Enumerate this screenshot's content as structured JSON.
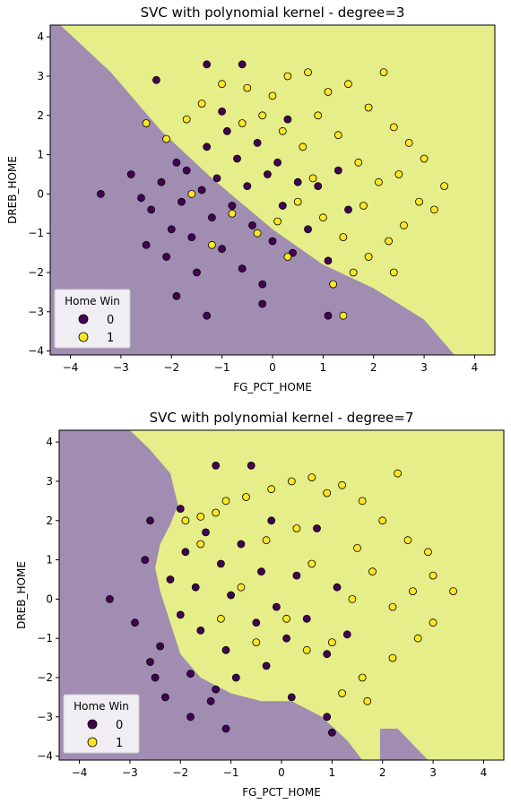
{
  "colors": {
    "class0": "#440154",
    "class1": "#fde725",
    "region0": "#a08db1",
    "region1": "#e6ee8a",
    "edge": "#000000"
  },
  "chart_data": [
    {
      "type": "scatter",
      "title": "SVC with polynomial kernel - degree=3",
      "xlabel": "FG_PCT_HOME",
      "ylabel": "DREB_HOME",
      "xlim": [
        -4.4,
        4.4
      ],
      "ylim": [
        -4.1,
        4.3
      ],
      "xticks": [
        -4,
        -3,
        -2,
        -1,
        0,
        1,
        2,
        3,
        4
      ],
      "yticks": [
        -4,
        -3,
        -2,
        -1,
        0,
        1,
        2,
        3,
        4
      ],
      "legend": {
        "title": "Home Win",
        "location": "lower-left",
        "entries": [
          "0",
          "1"
        ]
      },
      "decision_boundary": [
        [
          -4.2,
          4.3
        ],
        [
          -3.2,
          3.1
        ],
        [
          -2.2,
          1.6
        ],
        [
          -1.2,
          0.4
        ],
        [
          0.0,
          -0.9
        ],
        [
          1.0,
          -1.8
        ],
        [
          2.0,
          -2.4
        ],
        [
          3.0,
          -3.2
        ],
        [
          3.6,
          -4.1
        ]
      ],
      "series": [
        {
          "name": "0",
          "points": [
            [
              -2.8,
              0.5
            ],
            [
              -2.6,
              -0.1
            ],
            [
              -2.4,
              -0.4
            ],
            [
              -2.2,
              0.3
            ],
            [
              -2.0,
              -0.9
            ],
            [
              -2.1,
              -1.6
            ],
            [
              -1.9,
              0.8
            ],
            [
              -1.8,
              -0.2
            ],
            [
              -1.7,
              0.6
            ],
            [
              -1.6,
              -1.1
            ],
            [
              -1.5,
              -2.0
            ],
            [
              -1.4,
              0.1
            ],
            [
              -1.3,
              1.2
            ],
            [
              -1.3,
              3.3
            ],
            [
              -1.2,
              -0.6
            ],
            [
              -1.1,
              0.4
            ],
            [
              -1.0,
              -1.4
            ],
            [
              -0.9,
              1.6
            ],
            [
              -0.8,
              -0.3
            ],
            [
              -0.7,
              0.9
            ],
            [
              -0.6,
              3.3
            ],
            [
              -0.6,
              -1.9
            ],
            [
              -0.5,
              0.2
            ],
            [
              -0.4,
              -0.8
            ],
            [
              -0.3,
              1.3
            ],
            [
              -0.2,
              -2.3
            ],
            [
              -0.1,
              0.5
            ],
            [
              0.0,
              -1.2
            ],
            [
              0.1,
              0.8
            ],
            [
              0.2,
              -0.3
            ],
            [
              0.3,
              1.9
            ],
            [
              0.4,
              -1.5
            ],
            [
              0.5,
              0.3
            ],
            [
              0.7,
              -0.9
            ],
            [
              0.9,
              0.2
            ],
            [
              1.1,
              -1.7
            ],
            [
              1.3,
              0.6
            ],
            [
              1.5,
              -0.4
            ],
            [
              -2.3,
              2.9
            ],
            [
              -3.4,
              0.0
            ],
            [
              -1.9,
              -2.6
            ],
            [
              -1.3,
              -3.1
            ],
            [
              -0.2,
              -2.8
            ],
            [
              1.1,
              -3.1
            ],
            [
              -2.5,
              -1.3
            ],
            [
              -1.0,
              2.1
            ]
          ]
        },
        {
          "name": "1",
          "points": [
            [
              -2.5,
              1.8
            ],
            [
              -1.7,
              1.9
            ],
            [
              -1.4,
              2.3
            ],
            [
              -1.0,
              2.8
            ],
            [
              -0.5,
              2.7
            ],
            [
              0.0,
              2.5
            ],
            [
              0.3,
              3.0
            ],
            [
              0.7,
              3.1
            ],
            [
              1.1,
              2.6
            ],
            [
              1.5,
              2.8
            ],
            [
              2.2,
              3.1
            ],
            [
              1.9,
              2.2
            ],
            [
              2.4,
              1.7
            ],
            [
              2.7,
              1.3
            ],
            [
              3.0,
              0.9
            ],
            [
              3.4,
              0.2
            ],
            [
              2.9,
              -0.2
            ],
            [
              2.6,
              -0.8
            ],
            [
              2.3,
              -1.2
            ],
            [
              1.9,
              -1.6
            ],
            [
              2.4,
              -2.0
            ],
            [
              1.6,
              -2.0
            ],
            [
              1.2,
              -2.3
            ],
            [
              1.4,
              -1.1
            ],
            [
              1.0,
              -0.6
            ],
            [
              0.8,
              0.4
            ],
            [
              0.6,
              1.2
            ],
            [
              0.2,
              1.6
            ],
            [
              -0.2,
              2.0
            ],
            [
              -0.6,
              1.8
            ],
            [
              1.7,
              0.8
            ],
            [
              2.1,
              0.3
            ],
            [
              1.3,
              1.5
            ],
            [
              0.9,
              2.0
            ],
            [
              0.5,
              -0.2
            ],
            [
              0.1,
              -0.7
            ],
            [
              -0.3,
              -1.0
            ],
            [
              -0.8,
              -0.5
            ],
            [
              -1.2,
              -1.3
            ],
            [
              -1.6,
              0.0
            ],
            [
              -2.1,
              1.4
            ],
            [
              1.8,
              -0.3
            ],
            [
              2.5,
              0.5
            ],
            [
              3.2,
              -0.4
            ],
            [
              1.4,
              -3.1
            ],
            [
              0.3,
              -1.6
            ]
          ]
        }
      ]
    },
    {
      "type": "scatter",
      "title": "SVC with polynomial kernel - degree=7",
      "xlabel": "FG_PCT_HOME",
      "ylabel": "DREB_HOME",
      "xlim": [
        -4.4,
        4.4
      ],
      "ylim": [
        -4.1,
        4.3
      ],
      "xticks": [
        -4,
        -3,
        -2,
        -1,
        0,
        1,
        2,
        3,
        4
      ],
      "yticks": [
        -4,
        -3,
        -2,
        -1,
        0,
        1,
        2,
        3,
        4
      ],
      "legend": {
        "title": "Home Win",
        "location": "lower-left",
        "entries": [
          "0",
          "1"
        ]
      },
      "decision_boundary": [
        [
          -3.0,
          4.3
        ],
        [
          -2.6,
          3.8
        ],
        [
          -2.2,
          3.2
        ],
        [
          -2.05,
          2.4
        ],
        [
          -2.2,
          1.9
        ],
        [
          -2.4,
          1.4
        ],
        [
          -2.5,
          0.8
        ],
        [
          -2.4,
          0.2
        ],
        [
          -2.2,
          -0.6
        ],
        [
          -2.0,
          -1.4
        ],
        [
          -1.6,
          -2.0
        ],
        [
          -1.0,
          -2.4
        ],
        [
          -0.4,
          -2.6
        ],
        [
          0.2,
          -2.6
        ],
        [
          0.8,
          -3.0
        ],
        [
          1.3,
          -3.6
        ],
        [
          1.6,
          -4.1
        ]
      ],
      "region_patch": [
        [
          1.95,
          -4.1
        ],
        [
          1.95,
          -3.3
        ],
        [
          2.3,
          -3.3
        ],
        [
          2.6,
          -3.7
        ],
        [
          2.9,
          -4.1
        ]
      ],
      "series": [
        {
          "name": "0",
          "points": [
            [
              -3.4,
              0.0
            ],
            [
              -2.9,
              -0.6
            ],
            [
              -2.7,
              1.0
            ],
            [
              -2.6,
              -1.6
            ],
            [
              -2.4,
              -1.2
            ],
            [
              -2.2,
              0.5
            ],
            [
              -2.0,
              -0.4
            ],
            [
              -1.9,
              1.2
            ],
            [
              -1.8,
              -1.9
            ],
            [
              -1.7,
              0.3
            ],
            [
              -1.6,
              -0.8
            ],
            [
              -1.5,
              1.7
            ],
            [
              -1.4,
              -2.6
            ],
            [
              -1.3,
              3.4
            ],
            [
              -1.2,
              0.9
            ],
            [
              -1.1,
              -1.3
            ],
            [
              -1.0,
              0.1
            ],
            [
              -0.9,
              -2.0
            ],
            [
              -0.8,
              1.4
            ],
            [
              -0.6,
              3.4
            ],
            [
              -0.5,
              -0.6
            ],
            [
              -0.4,
              0.7
            ],
            [
              -0.3,
              -1.7
            ],
            [
              -0.2,
              2.0
            ],
            [
              -0.1,
              -0.2
            ],
            [
              0.1,
              -1.0
            ],
            [
              0.3,
              0.6
            ],
            [
              0.5,
              -0.5
            ],
            [
              0.7,
              1.8
            ],
            [
              0.9,
              -1.4
            ],
            [
              1.1,
              0.3
            ],
            [
              1.3,
              -0.9
            ],
            [
              -2.5,
              -2.0
            ],
            [
              -1.8,
              -3.0
            ],
            [
              -1.1,
              -3.3
            ],
            [
              0.2,
              -2.5
            ],
            [
              0.9,
              -3.0
            ],
            [
              1.0,
              -3.4
            ],
            [
              -2.3,
              -2.5
            ],
            [
              -2.0,
              2.3
            ],
            [
              -2.6,
              2.0
            ],
            [
              -1.3,
              -2.3
            ]
          ]
        },
        {
          "name": "1",
          "points": [
            [
              -1.9,
              2.0
            ],
            [
              -1.6,
              2.1
            ],
            [
              -1.3,
              2.2
            ],
            [
              -1.1,
              2.5
            ],
            [
              -0.7,
              2.6
            ],
            [
              -0.2,
              2.8
            ],
            [
              0.2,
              3.0
            ],
            [
              0.6,
              3.1
            ],
            [
              0.9,
              2.7
            ],
            [
              1.2,
              2.9
            ],
            [
              1.6,
              2.5
            ],
            [
              2.3,
              3.2
            ],
            [
              2.0,
              2.0
            ],
            [
              2.5,
              1.5
            ],
            [
              2.9,
              1.2
            ],
            [
              3.0,
              0.6
            ],
            [
              3.4,
              0.2
            ],
            [
              3.0,
              -0.6
            ],
            [
              2.7,
              -1.0
            ],
            [
              2.2,
              -1.5
            ],
            [
              1.6,
              -2.0
            ],
            [
              1.2,
              -2.4
            ],
            [
              1.7,
              -2.6
            ],
            [
              1.0,
              -1.1
            ],
            [
              1.4,
              0.0
            ],
            [
              1.8,
              0.7
            ],
            [
              2.2,
              -0.2
            ],
            [
              0.6,
              0.9
            ],
            [
              0.3,
              1.8
            ],
            [
              -0.3,
              1.5
            ],
            [
              -0.8,
              0.3
            ],
            [
              -1.2,
              -0.5
            ],
            [
              0.1,
              -0.5
            ],
            [
              0.5,
              -1.3
            ],
            [
              -0.5,
              -1.1
            ],
            [
              -1.6,
              1.4
            ],
            [
              1.5,
              1.3
            ],
            [
              2.6,
              0.2
            ]
          ]
        }
      ]
    }
  ]
}
